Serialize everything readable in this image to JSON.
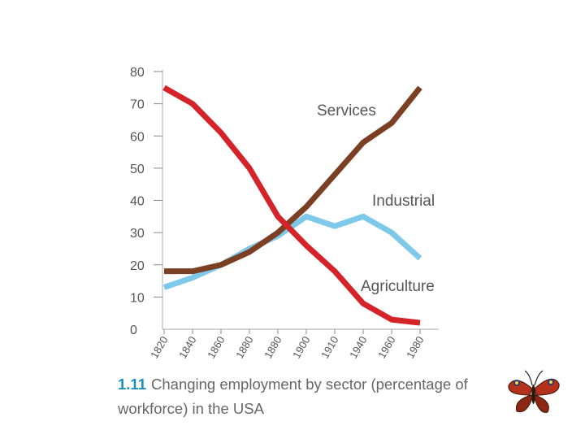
{
  "chart_data": {
    "type": "line",
    "title": "Changing employment by sector (percentage of workforce) in the USA",
    "figure_number": "1.11",
    "ylim": [
      0,
      80
    ],
    "y_ticks": [
      0,
      10,
      20,
      30,
      40,
      50,
      60,
      70,
      80
    ],
    "x_tick_labels": [
      "1820",
      "1840",
      "1860",
      "1880",
      "1880",
      "1900",
      "1910",
      "1940",
      "1960",
      "1980"
    ],
    "grid": false,
    "series": [
      {
        "name": "Services",
        "color": "#7b3f24",
        "values": [
          18,
          18,
          20,
          24,
          30,
          38,
          48,
          58,
          64,
          75
        ]
      },
      {
        "name": "Industrial",
        "color": "#7ec8ea",
        "values": [
          13,
          16,
          20,
          25,
          29,
          35,
          32,
          35,
          30,
          22
        ]
      },
      {
        "name": "Agriculture",
        "color": "#d42329",
        "values": [
          75,
          70,
          61,
          50,
          35,
          26,
          18,
          8,
          3,
          2
        ]
      }
    ]
  },
  "caption": {
    "number": "1.11",
    "text": "Changing employment by sector (percentage of workforce) in the USA"
  },
  "decoration": {
    "icon": "butterfly-icon"
  }
}
